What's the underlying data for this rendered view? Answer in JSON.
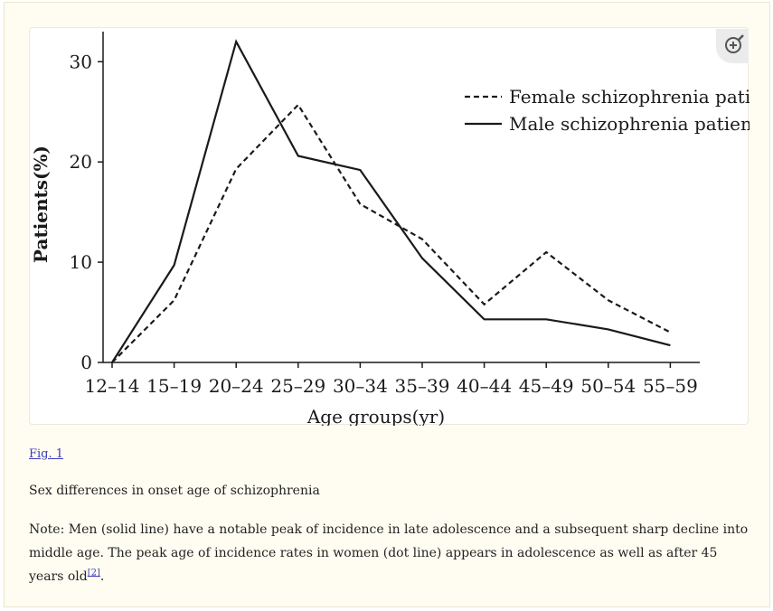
{
  "figure": {
    "link_label": "Fig. 1",
    "caption": "Sex differences in onset age of schizophrenia",
    "note_text": "Note: Men (solid line) have a notable peak of incidence in late adolescence and a subsequent sharp decline into middle age. The peak age of incidence rates in women (dot line) appears in adolescence as well as after 45 years old",
    "reference_label": "[2]",
    "note_end": ".",
    "zoom_icon": "zoom-in-icon"
  },
  "chart_data": {
    "type": "line",
    "title": "",
    "xlabel": "Age groups(yr)",
    "ylabel": "Patients(%)",
    "categories": [
      "12–14",
      "15–19",
      "20–24",
      "25–29",
      "30–34",
      "35–39",
      "40–44",
      "45–49",
      "50–54",
      "55–59"
    ],
    "ylim": [
      0,
      33
    ],
    "yticks": [
      0,
      10,
      20,
      30
    ],
    "grid": false,
    "legend_position": "top-right",
    "series": [
      {
        "name": "Female schizophrenia patients",
        "style": "dashed",
        "color": "#1a1a1a",
        "values": [
          0,
          6.2,
          19.3,
          25.7,
          15.8,
          12.3,
          5.8,
          11.0,
          6.2,
          3.0
        ]
      },
      {
        "name": "Male schizophrenia patients",
        "style": "solid",
        "color": "#1a1a1a",
        "values": [
          0,
          9.7,
          32.0,
          20.6,
          19.2,
          10.4,
          4.3,
          4.3,
          3.3,
          1.7
        ]
      }
    ]
  }
}
